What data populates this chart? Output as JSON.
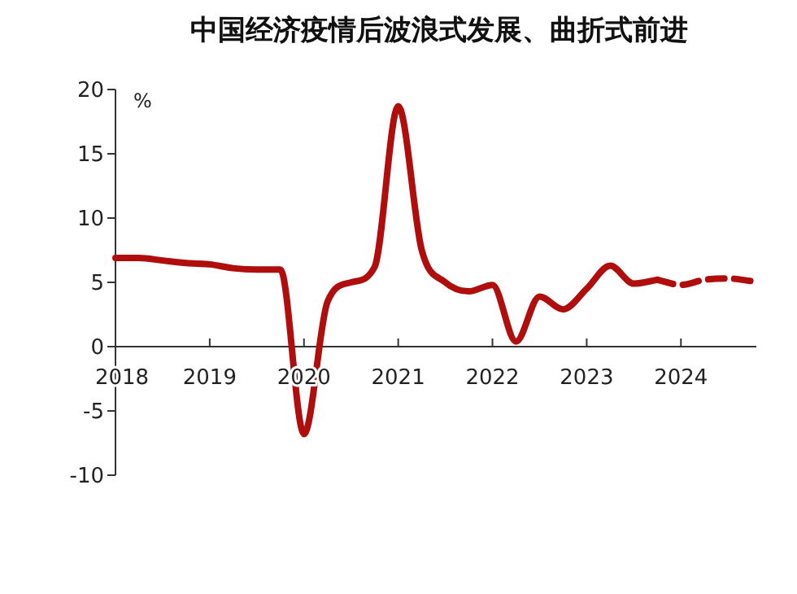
{
  "chart_data": {
    "type": "line",
    "title": "中国经济疫情后波浪式发展、曲折式前进",
    "ylabel": "%",
    "xlim": [
      2018,
      2024.8
    ],
    "xticks": [
      2018,
      2019,
      2020,
      2021,
      2022,
      2023,
      2024
    ],
    "ylim": [
      -10,
      20
    ],
    "yticks": [
      -10,
      -5,
      0,
      5,
      10,
      15,
      20
    ],
    "series": [
      {
        "color": "#b00d0d",
        "line_style": "solid",
        "x": [
          2018,
          2018.25,
          2018.5,
          2018.75,
          2019,
          2019.25,
          2019.5,
          2019.75,
          2020,
          2020.25,
          2020.5,
          2020.75,
          2021,
          2021.25,
          2021.5,
          2021.75,
          2022,
          2022.25,
          2022.5,
          2022.75,
          2023,
          2023.25,
          2023.5,
          2023.75
        ],
        "values": [
          6.9,
          6.9,
          6.7,
          6.5,
          6.4,
          6.1,
          6.0,
          6.0,
          -6.8,
          3.5,
          5.0,
          6.2,
          18.7,
          7.5,
          5.0,
          4.3,
          4.8,
          0.4,
          3.9,
          2.9,
          4.5,
          6.3,
          4.9,
          5.2
        ]
      },
      {
        "color": "#b00d0d",
        "line_style": "dashed",
        "x": [
          2023.75,
          2024,
          2024.25,
          2024.5,
          2024.75
        ],
        "values": [
          5.2,
          4.8,
          5.2,
          5.3,
          5.1
        ]
      }
    ]
  }
}
